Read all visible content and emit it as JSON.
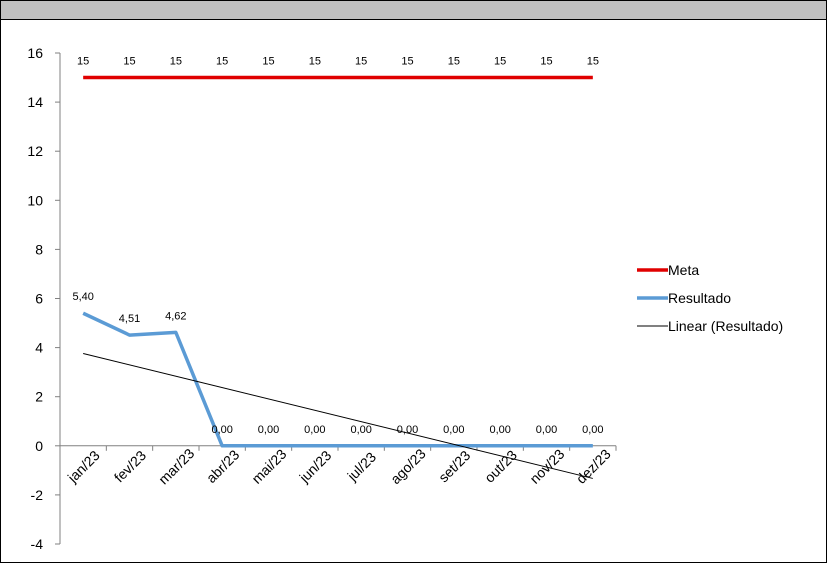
{
  "chart_data": {
    "type": "line",
    "categories": [
      "jan/23",
      "fev/23",
      "mar/23",
      "abr/23",
      "mai/23",
      "jun/23",
      "jul/23",
      "ago/23",
      "set/23",
      "out/23",
      "nov/23",
      "dez/23"
    ],
    "series": [
      {
        "name": "Meta",
        "color": "#e00000",
        "values": [
          15,
          15,
          15,
          15,
          15,
          15,
          15,
          15,
          15,
          15,
          15,
          15
        ],
        "labels": [
          "15",
          "15",
          "15",
          "15",
          "15",
          "15",
          "15",
          "15",
          "15",
          "15",
          "15",
          "15"
        ]
      },
      {
        "name": "Resultado",
        "color": "#5b9bd5",
        "values": [
          5.4,
          4.51,
          4.62,
          0,
          0,
          0,
          0,
          0,
          0,
          0,
          0,
          0
        ],
        "labels": [
          "5,40",
          "4,51",
          "4,62",
          "0,00",
          "0,00",
          "0,00",
          "0,00",
          "0,00",
          "0,00",
          "0,00",
          "0,00",
          "0,00"
        ]
      }
    ],
    "trendline": {
      "name": "Linear (Resultado)",
      "color": "#000000",
      "start": 3.76,
      "end": -1.33
    },
    "ylim": [
      -4,
      16
    ],
    "yticks": [
      "-4",
      "-2",
      "0",
      "2",
      "4",
      "6",
      "8",
      "10",
      "12",
      "14",
      "16"
    ],
    "ytick_values": [
      -4,
      -2,
      0,
      2,
      4,
      6,
      8,
      10,
      12,
      14,
      16
    ],
    "legend_position": "right",
    "grid": false
  }
}
